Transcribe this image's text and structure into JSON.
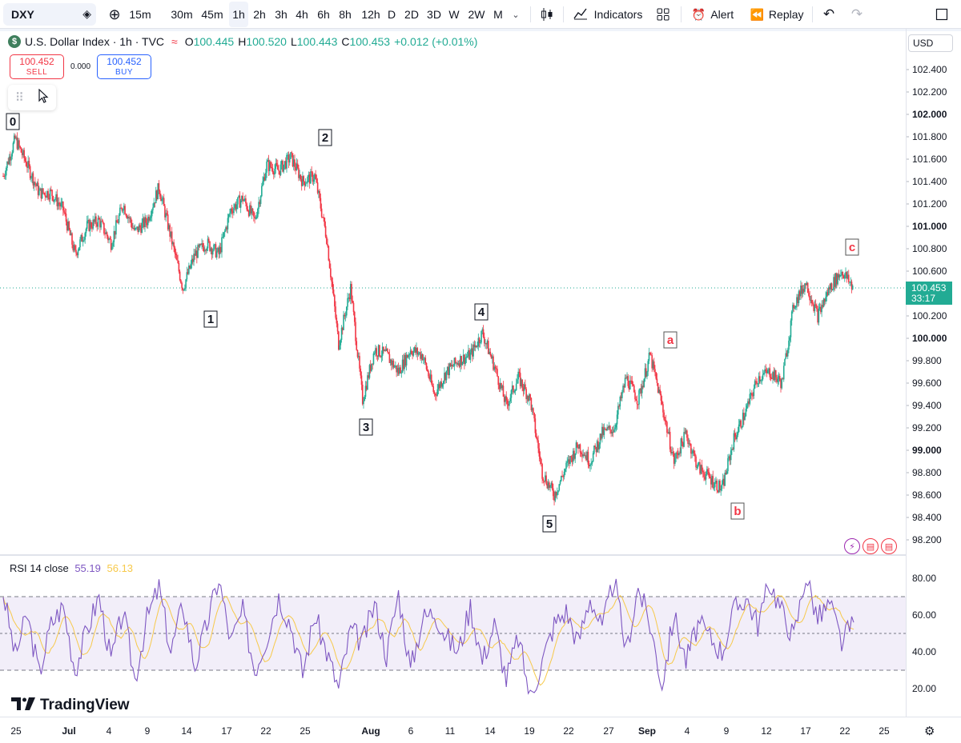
{
  "toolbar": {
    "symbol": "DXY",
    "timeframes": [
      "15m",
      "30m",
      "45m",
      "1h",
      "2h",
      "3h",
      "4h",
      "6h",
      "8h",
      "12h",
      "D",
      "2D",
      "3D",
      "W",
      "2W",
      "M"
    ],
    "active_timeframe": "1h",
    "indicators_label": "Indicators",
    "alert_label": "Alert",
    "replay_label": "Replay"
  },
  "legend": {
    "title": "U.S. Dollar Index · 1h · TVC",
    "symbol_badge": "$",
    "o_label": "O",
    "o": "100.445",
    "h_label": "H",
    "h": "100.520",
    "l_label": "L",
    "l": "100.443",
    "c_label": "C",
    "c": "100.453",
    "change": "+0.012 (+0.01%)"
  },
  "trade": {
    "sell_price": "100.452",
    "sell_label": "SELL",
    "buy_price": "100.452",
    "buy_label": "BUY",
    "spread": "0.000"
  },
  "price_scale": {
    "currency": "USD",
    "current_price": "100.453",
    "countdown": "33:17"
  },
  "rsi": {
    "label": "RSI 14 close",
    "value": "55.19",
    "ma_value": "56.13"
  },
  "branding": {
    "logo_text": "TradingView"
  },
  "colors": {
    "up": "#22ab94",
    "down": "#f23645",
    "rsi_line": "#7e57c2",
    "rsi_ma": "#f7c94a",
    "wave_red": "#f23645",
    "label_black": "#131722"
  },
  "chart_data": [
    {
      "type": "candlestick",
      "title": "U.S. Dollar Index · 1h · TVC",
      "ylim": [
        98.2,
        102.5
      ],
      "yticks": [
        "102.400",
        "102.200",
        "102.000",
        "101.800",
        "101.600",
        "101.400",
        "101.200",
        "101.000",
        "100.800",
        "100.600",
        "100.400",
        "100.200",
        "100.000",
        "99.800",
        "99.600",
        "99.400",
        "99.200",
        "99.000",
        "98.800",
        "98.600",
        "98.400",
        "98.200"
      ],
      "bold_ticks": [
        "102.000",
        "101.000",
        "100.000",
        "99.000"
      ],
      "xticks": [
        "25",
        "Jul",
        "4",
        "9",
        "14",
        "17",
        "22",
        "25",
        "Aug",
        "6",
        "11",
        "14",
        "19",
        "22",
        "27",
        "Sep",
        "4",
        "9",
        "12",
        "17",
        "22",
        "25"
      ],
      "bold_xticks": [
        "Jul",
        "Aug",
        "Sep"
      ],
      "price_path": [
        {
          "x": "25",
          "y": 101.45
        },
        {
          "x": "",
          "y": 101.78
        },
        {
          "x": "",
          "y": 101.55
        },
        {
          "x": "",
          "y": 101.3
        },
        {
          "x": "Jul",
          "y": 101.3
        },
        {
          "x": "",
          "y": 101.15
        },
        {
          "x": "",
          "y": 100.75
        },
        {
          "x": "",
          "y": 101.0
        },
        {
          "x": "4",
          "y": 101.05
        },
        {
          "x": "",
          "y": 100.85
        },
        {
          "x": "",
          "y": 101.2
        },
        {
          "x": "9",
          "y": 100.95
        },
        {
          "x": "",
          "y": 101.05
        },
        {
          "x": "",
          "y": 101.35
        },
        {
          "x": "14",
          "y": 100.9
        },
        {
          "x": "",
          "y": 100.45
        },
        {
          "x": "17",
          "y": 100.75
        },
        {
          "x": "",
          "y": 100.85
        },
        {
          "x": "",
          "y": 100.75
        },
        {
          "x": "",
          "y": 101.15
        },
        {
          "x": "22",
          "y": 101.25
        },
        {
          "x": "",
          "y": 101.05
        },
        {
          "x": "",
          "y": 101.55
        },
        {
          "x": "25",
          "y": 101.5
        },
        {
          "x": "",
          "y": 101.62
        },
        {
          "x": "",
          "y": 101.4
        },
        {
          "x": "",
          "y": 101.45
        },
        {
          "x": "",
          "y": 100.9
        },
        {
          "x": "",
          "y": 99.95
        },
        {
          "x": "",
          "y": 100.45
        },
        {
          "x": "",
          "y": 99.45
        },
        {
          "x": "",
          "y": 99.9
        },
        {
          "x": "Aug",
          "y": 99.85
        },
        {
          "x": "",
          "y": 99.7
        },
        {
          "x": "",
          "y": 99.9
        },
        {
          "x": "6",
          "y": 99.85
        },
        {
          "x": "",
          "y": 99.5
        },
        {
          "x": "",
          "y": 99.7
        },
        {
          "x": "11",
          "y": 99.8
        },
        {
          "x": "",
          "y": 99.85
        },
        {
          "x": "14",
          "y": 100.05
        },
        {
          "x": "",
          "y": 99.75
        },
        {
          "x": "",
          "y": 99.4
        },
        {
          "x": "",
          "y": 99.65
        },
        {
          "x": "19",
          "y": 99.45
        },
        {
          "x": "",
          "y": 98.8
        },
        {
          "x": "",
          "y": 98.6
        },
        {
          "x": "22",
          "y": 98.85
        },
        {
          "x": "",
          "y": 99.05
        },
        {
          "x": "",
          "y": 98.9
        },
        {
          "x": "27",
          "y": 99.15
        },
        {
          "x": "",
          "y": 99.2
        },
        {
          "x": "",
          "y": 99.65
        },
        {
          "x": "Sep",
          "y": 99.45
        },
        {
          "x": "",
          "y": 99.85
        },
        {
          "x": "",
          "y": 99.4
        },
        {
          "x": "4",
          "y": 98.9
        },
        {
          "x": "",
          "y": 99.15
        },
        {
          "x": "",
          "y": 98.85
        },
        {
          "x": "9",
          "y": 98.75
        },
        {
          "x": "",
          "y": 98.65
        },
        {
          "x": "",
          "y": 99.1
        },
        {
          "x": "12",
          "y": 99.35
        },
        {
          "x": "",
          "y": 99.65
        },
        {
          "x": "",
          "y": 99.7
        },
        {
          "x": "17",
          "y": 99.6
        },
        {
          "x": "",
          "y": 100.3
        },
        {
          "x": "",
          "y": 100.5
        },
        {
          "x": "",
          "y": 100.2
        },
        {
          "x": "22",
          "y": 100.45
        },
        {
          "x": "",
          "y": 100.6
        },
        {
          "x": "",
          "y": 100.45
        }
      ],
      "wave_labels": [
        {
          "text": "0",
          "x": "25",
          "y": 101.8,
          "color": "black"
        },
        {
          "text": "1",
          "x": "17",
          "y": 100.45,
          "color": "black"
        },
        {
          "text": "2",
          "x": "25",
          "y": 101.65,
          "color": "black"
        },
        {
          "text": "3",
          "x": "Aug",
          "y": 99.45,
          "color": "black"
        },
        {
          "text": "4",
          "x": "14",
          "y": 100.05,
          "color": "black"
        },
        {
          "text": "5",
          "x": "22",
          "y": 98.6,
          "color": "black"
        },
        {
          "text": "a",
          "x": "Sep",
          "y": 99.85,
          "color": "red"
        },
        {
          "text": "b",
          "x": "9",
          "y": 98.65,
          "color": "red"
        },
        {
          "text": "c",
          "x": "22",
          "y": 100.65,
          "color": "red"
        }
      ]
    },
    {
      "type": "line",
      "title": "RSI 14 close",
      "ylim": [
        10,
        85
      ],
      "yticks": [
        "80.00",
        "60.00",
        "40.00",
        "20.00"
      ],
      "bands": [
        30,
        50,
        70
      ],
      "series": [
        {
          "name": "RSI",
          "values": [
            72,
            38,
            60,
            28,
            55,
            65,
            30,
            52,
            70,
            35,
            62,
            25,
            58,
            75,
            40,
            66,
            32,
            55,
            80,
            45,
            62,
            30,
            48,
            70,
            55,
            28,
            60,
            40,
            20,
            52,
            45,
            66,
            38,
            72,
            30,
            58,
            62,
            48,
            40,
            65,
            35,
            55,
            25,
            48,
            15,
            35,
            55,
            62,
            45,
            70,
            52,
            80,
            40,
            75,
            55,
            22,
            60,
            35,
            55,
            48,
            40,
            62,
            70,
            55,
            78,
            62,
            48,
            82,
            58,
            66,
            45,
            56
          ]
        }
      ]
    }
  ]
}
